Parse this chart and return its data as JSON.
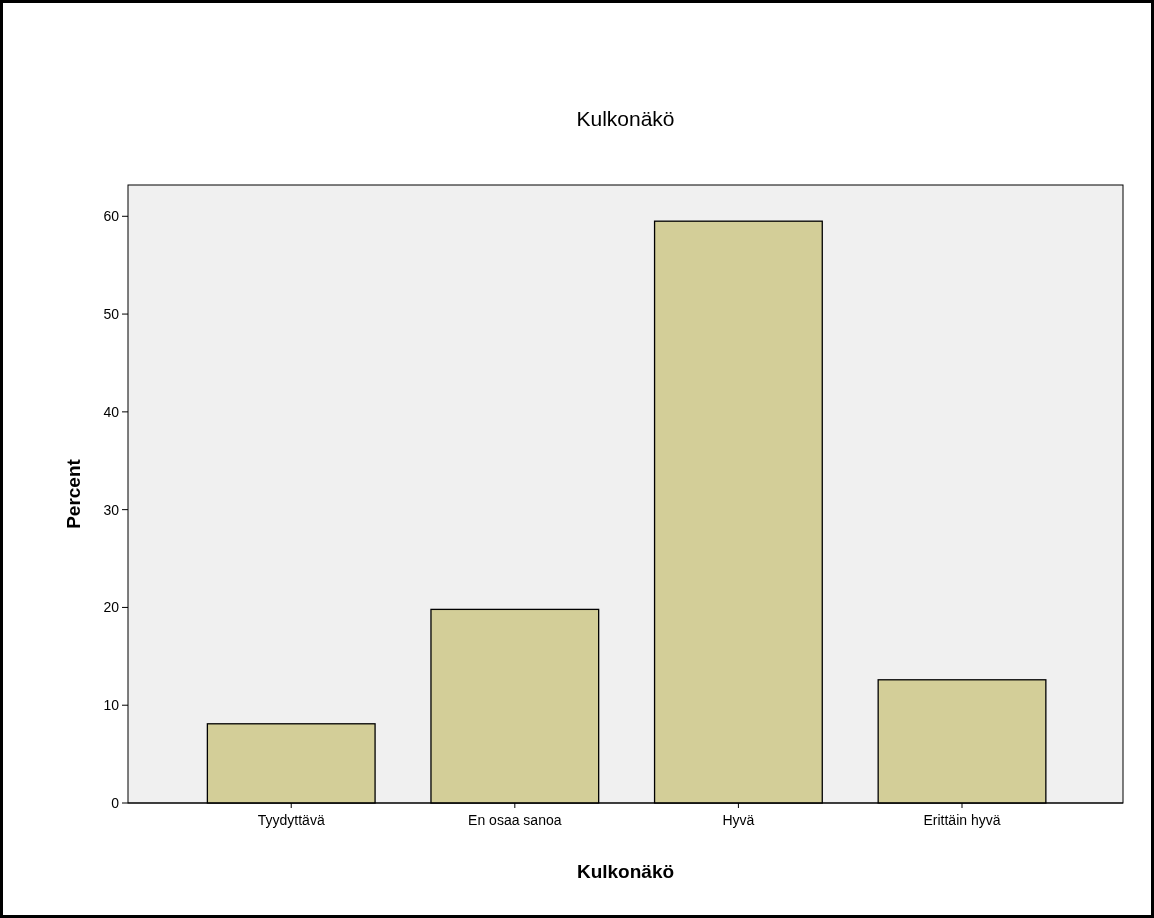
{
  "chart_data": {
    "type": "bar",
    "title": "Kulkonäkö",
    "xlabel": "Kulkonäkö",
    "ylabel": "Percent",
    "categories": [
      "Tyydyttävä",
      "En osaa sanoa",
      "Hyvä",
      "Erittäin hyvä"
    ],
    "values": [
      8.1,
      19.8,
      59.5,
      12.6
    ],
    "color": "#d3ce98",
    "ylim": [
      0,
      63.2
    ],
    "yticks": [
      0,
      10,
      20,
      30,
      40,
      50,
      60
    ],
    "grid": false
  }
}
